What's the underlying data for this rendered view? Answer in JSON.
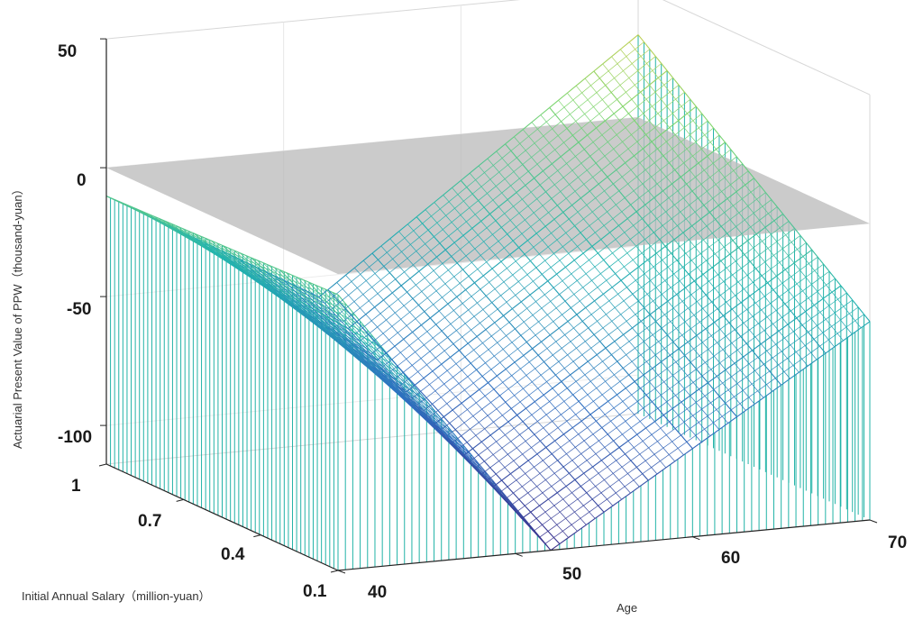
{
  "chart_data": {
    "type": "surface3d",
    "title": "",
    "xlabel": "Age",
    "ylabel": "Initial Annual Salary（million-yuan）",
    "zlabel": "Actuarial Present Value of PPW（thousand-yuan）",
    "x_ticks": [
      "40",
      "50",
      "60",
      "70"
    ],
    "y_ticks": [
      "0.1",
      "0.4",
      "0.7",
      "1"
    ],
    "z_ticks": [
      "50",
      "0",
      "-50",
      "-100"
    ],
    "xlim": [
      40,
      70
    ],
    "ylim": [
      0.1,
      1
    ],
    "zlim": [
      -115,
      50
    ],
    "zero_plane": {
      "z": 0,
      "color": "#bdbdbd"
    },
    "surface_anchor_points": [
      {
        "age": 40,
        "salary": 0.1,
        "value": -8
      },
      {
        "age": 40,
        "salary": 1.0,
        "value": -11
      },
      {
        "age": 52,
        "salary": 0.1,
        "value": -115
      },
      {
        "age": 52,
        "salary": 1.0,
        "value": -58
      },
      {
        "age": 70,
        "salary": 0.1,
        "value": -38
      },
      {
        "age": 70,
        "salary": 1.0,
        "value": 32
      }
    ],
    "colormap": [
      "#3b2f8c",
      "#2f6fc1",
      "#21b3b0",
      "#7ed66f",
      "#f2cb3b"
    ],
    "grid": true,
    "stems": true
  }
}
